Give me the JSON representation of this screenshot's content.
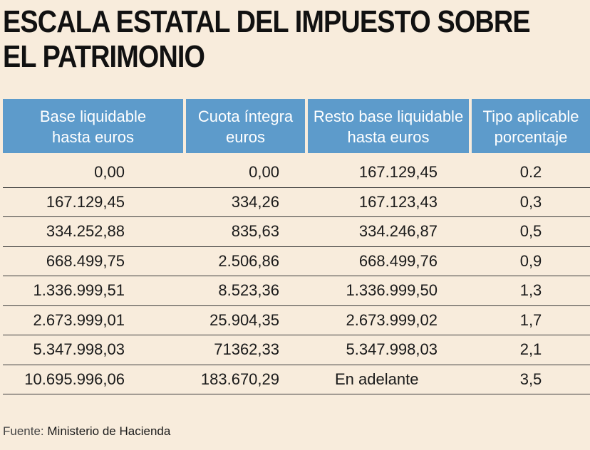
{
  "title": {
    "line1": "ESCALA ESTATAL DEL IMPUESTO SOBRE",
    "line2": "EL PATRIMONIO"
  },
  "table": {
    "headers": [
      {
        "line1": "Base liquidable",
        "line2": "hasta euros"
      },
      {
        "line1": "Cuota íntegra",
        "line2": "euros"
      },
      {
        "line1": "Resto base liquidable",
        "line2": "hasta euros"
      },
      {
        "line1": "Tipo aplicable",
        "line2": "porcentaje"
      }
    ],
    "rows": [
      [
        "0,00",
        "0,00",
        "167.129,45",
        "0.2"
      ],
      [
        "167.129,45",
        "334,26",
        "167.123,43",
        "0,3"
      ],
      [
        "334.252,88",
        "835,63",
        "334.246,87",
        "0,5"
      ],
      [
        "668.499,75",
        "2.506,86",
        "668.499,76",
        "0,9"
      ],
      [
        "1.336.999,51",
        "8.523,36",
        "1.336.999,50",
        "1,3"
      ],
      [
        "2.673.999,01",
        "25.904,35",
        "2.673.999,02",
        "1,7"
      ],
      [
        "5.347.998,03",
        "71362,33",
        "5.347.998,03",
        "2,1"
      ],
      [
        "10.695.996,06",
        "183.670,29",
        "En adelante",
        "3,5"
      ]
    ]
  },
  "source": {
    "label": "Fuente:",
    "text": "Ministerio de Hacienda"
  },
  "colors": {
    "background": "#f8ecdc",
    "header": "#5d9bcb",
    "header_text": "#ffffff",
    "text": "#1a1a1a"
  }
}
